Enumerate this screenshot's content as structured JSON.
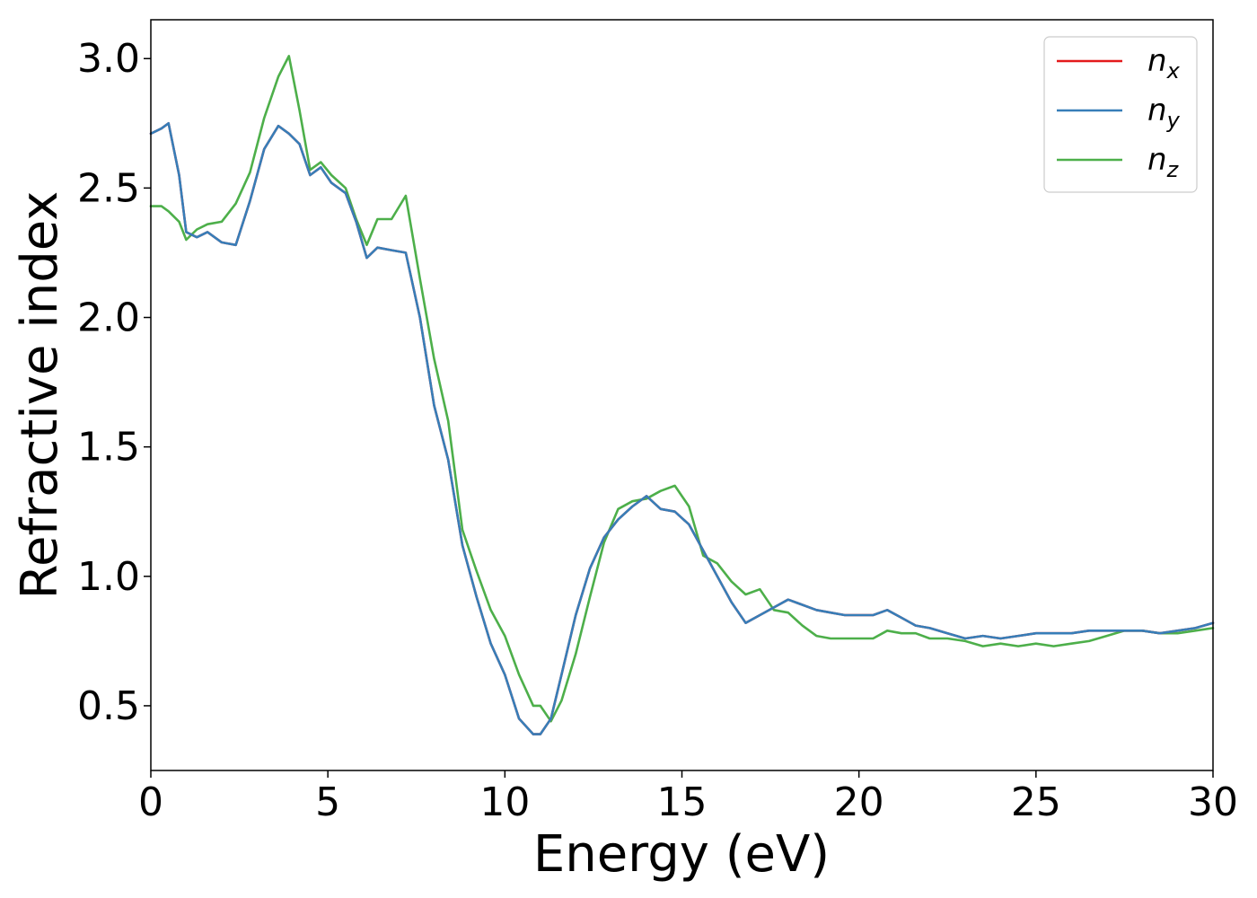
{
  "colors": {
    "nx": "#e41a1c",
    "ny": "#377eb8",
    "nz": "#4daf4a"
  },
  "chart_data": {
    "type": "line",
    "title": "",
    "xlabel": "Energy (eV)",
    "ylabel": "Refractive index",
    "xlim": [
      0,
      30
    ],
    "ylim": [
      0.25,
      3.15
    ],
    "xticks": [
      "0",
      "5",
      "10",
      "15",
      "20",
      "25",
      "30"
    ],
    "yticks": [
      "0.5",
      "1.0",
      "1.5",
      "2.0",
      "2.5",
      "3.0"
    ],
    "grid": false,
    "legend_position": "top-right",
    "x": [
      0,
      0.3,
      0.5,
      0.8,
      1.0,
      1.3,
      1.6,
      2.0,
      2.4,
      2.8,
      3.2,
      3.6,
      3.9,
      4.2,
      4.5,
      4.8,
      5.1,
      5.5,
      5.8,
      6.1,
      6.4,
      6.8,
      7.2,
      7.6,
      8.0,
      8.4,
      8.8,
      9.2,
      9.6,
      10.0,
      10.4,
      10.8,
      11.0,
      11.3,
      11.6,
      12.0,
      12.4,
      12.8,
      13.2,
      13.6,
      14.0,
      14.4,
      14.8,
      15.2,
      15.6,
      16.0,
      16.4,
      16.8,
      17.2,
      17.6,
      18.0,
      18.4,
      18.8,
      19.2,
      19.6,
      20.0,
      20.4,
      20.8,
      21.2,
      21.6,
      22.0,
      22.5,
      23.0,
      23.5,
      24.0,
      24.5,
      25.0,
      25.5,
      26.0,
      26.5,
      27.0,
      27.5,
      28.0,
      28.5,
      29.0,
      29.5,
      30.0
    ],
    "series": [
      {
        "name": "n_x",
        "label_base": "n",
        "label_sub": "x",
        "color_key": "nx",
        "values": [
          2.71,
          2.73,
          2.75,
          2.55,
          2.33,
          2.31,
          2.33,
          2.29,
          2.28,
          2.45,
          2.65,
          2.74,
          2.71,
          2.67,
          2.55,
          2.58,
          2.52,
          2.48,
          2.37,
          2.23,
          2.27,
          2.26,
          2.25,
          2.0,
          1.66,
          1.45,
          1.12,
          0.92,
          0.74,
          0.62,
          0.45,
          0.39,
          0.39,
          0.45,
          0.62,
          0.85,
          1.03,
          1.15,
          1.22,
          1.27,
          1.31,
          1.26,
          1.25,
          1.2,
          1.1,
          1.0,
          0.9,
          0.82,
          0.85,
          0.88,
          0.91,
          0.89,
          0.87,
          0.86,
          0.85,
          0.85,
          0.85,
          0.87,
          0.84,
          0.81,
          0.8,
          0.78,
          0.76,
          0.77,
          0.76,
          0.77,
          0.78,
          0.78,
          0.78,
          0.79,
          0.79,
          0.79,
          0.79,
          0.78,
          0.79,
          0.8,
          0.82
        ]
      },
      {
        "name": "n_y",
        "label_base": "n",
        "label_sub": "y",
        "color_key": "ny",
        "values": [
          2.71,
          2.73,
          2.75,
          2.55,
          2.33,
          2.31,
          2.33,
          2.29,
          2.28,
          2.45,
          2.65,
          2.74,
          2.71,
          2.67,
          2.55,
          2.58,
          2.52,
          2.48,
          2.37,
          2.23,
          2.27,
          2.26,
          2.25,
          2.0,
          1.66,
          1.45,
          1.12,
          0.92,
          0.74,
          0.62,
          0.45,
          0.39,
          0.39,
          0.45,
          0.62,
          0.85,
          1.03,
          1.15,
          1.22,
          1.27,
          1.31,
          1.26,
          1.25,
          1.2,
          1.1,
          1.0,
          0.9,
          0.82,
          0.85,
          0.88,
          0.91,
          0.89,
          0.87,
          0.86,
          0.85,
          0.85,
          0.85,
          0.87,
          0.84,
          0.81,
          0.8,
          0.78,
          0.76,
          0.77,
          0.76,
          0.77,
          0.78,
          0.78,
          0.78,
          0.79,
          0.79,
          0.79,
          0.79,
          0.78,
          0.79,
          0.8,
          0.82
        ]
      },
      {
        "name": "n_z",
        "label_base": "n",
        "label_sub": "z",
        "color_key": "nz",
        "values": [
          2.43,
          2.43,
          2.41,
          2.37,
          2.3,
          2.34,
          2.36,
          2.37,
          2.44,
          2.56,
          2.77,
          2.93,
          3.01,
          2.8,
          2.57,
          2.6,
          2.55,
          2.5,
          2.38,
          2.28,
          2.38,
          2.38,
          2.47,
          2.15,
          1.84,
          1.6,
          1.18,
          1.02,
          0.87,
          0.77,
          0.62,
          0.5,
          0.5,
          0.44,
          0.52,
          0.7,
          0.92,
          1.13,
          1.26,
          1.29,
          1.3,
          1.33,
          1.35,
          1.27,
          1.08,
          1.05,
          0.98,
          0.93,
          0.95,
          0.87,
          0.86,
          0.81,
          0.77,
          0.76,
          0.76,
          0.76,
          0.76,
          0.79,
          0.78,
          0.78,
          0.76,
          0.76,
          0.75,
          0.73,
          0.74,
          0.73,
          0.74,
          0.73,
          0.74,
          0.75,
          0.77,
          0.79,
          0.79,
          0.78,
          0.78,
          0.79,
          0.8
        ]
      }
    ]
  }
}
